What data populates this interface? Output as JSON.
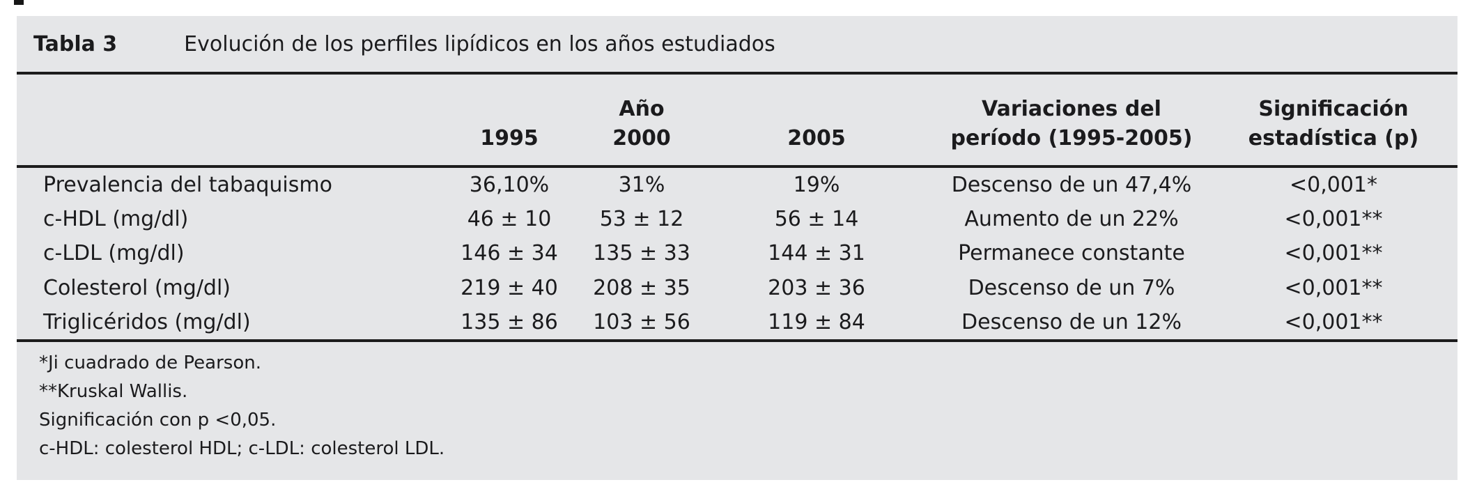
{
  "table": {
    "label": "Tabla 3",
    "title": "Evolución de los perfiles lipídicos en los años estudiados",
    "header": {
      "year_group_label": "Año",
      "years": [
        "1995",
        "2000",
        "2005"
      ],
      "variation_col": {
        "line1": "Variaciones del",
        "line2": "período (1995-2005)"
      },
      "significance_col": {
        "line1": "Significación",
        "line2": "estadística (p)"
      }
    },
    "rows": [
      {
        "label": "Prevalencia del tabaquismo",
        "y1995": "36,10%",
        "y2000": "31%",
        "y2005": "19%",
        "variation": "Descenso de un 47,4%",
        "significance": "<0,001*"
      },
      {
        "label": "c-HDL (mg/dl)",
        "y1995": "46 ± 10",
        "y2000": "53 ± 12",
        "y2005": "56 ± 14",
        "variation": "Aumento de un 22%",
        "significance": "<0,001**"
      },
      {
        "label": "c-LDL (mg/dl)",
        "y1995": "146 ± 34",
        "y2000": "135 ± 33",
        "y2005": "144 ± 31",
        "variation": "Permanece constante",
        "significance": "<0,001**"
      },
      {
        "label": "Colesterol (mg/dl)",
        "y1995": "219 ± 40",
        "y2000": "208 ± 35",
        "y2005": "203 ± 36",
        "variation": "Descenso de un 7%",
        "significance": "<0,001**"
      },
      {
        "label": "Triglicéridos (mg/dl)",
        "y1995": "135 ± 86",
        "y2000": "103 ± 56",
        "y2005": "119 ± 84",
        "variation": "Descenso de un 12%",
        "significance": "<0,001**"
      }
    ],
    "footnotes": [
      "*Ji cuadrado de Pearson.",
      "**Kruskal Wallis.",
      "Significación con p <0,05.",
      "c-HDL: colesterol HDL; c-LDL: colesterol LDL."
    ],
    "colors": {
      "panel_bg": "#e5e6e8",
      "text": "#1b1b1d",
      "rule": "#1c1c1c"
    }
  }
}
